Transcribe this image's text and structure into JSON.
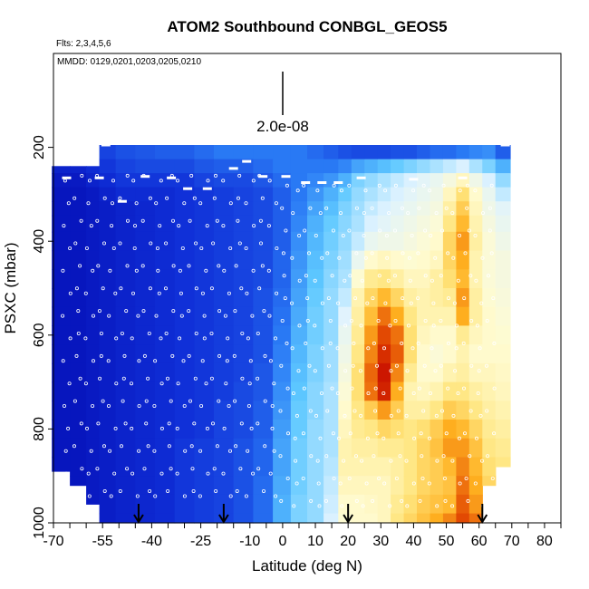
{
  "chart_data": {
    "type": "heatmap",
    "title": "ATOM2 Southbound CONBGL_GEOS5",
    "flights_note": "Flts: 2,3,4,5,6",
    "dates_note": "MMDD: 0129,0201,0203,0205,0210",
    "scale_label": "2.0e-08",
    "xlabel": "Latitude (deg N)",
    "ylabel": "PSXC (mbar)",
    "xlim": [
      -70,
      85
    ],
    "ylim": [
      1000,
      0
    ],
    "x_ticks": [
      -70,
      -55,
      -40,
      -25,
      -10,
      0,
      10,
      20,
      30,
      40,
      50,
      60,
      70,
      80
    ],
    "y_ticks": [
      200,
      400,
      600,
      800,
      1000
    ],
    "grid": false,
    "colormap": [
      "#0000a8",
      "#1030d8",
      "#2a7af5",
      "#5ec8ff",
      "#dff3ff",
      "#fffbd0",
      "#ffe680",
      "#ffb020",
      "#e04000",
      "#c00000"
    ],
    "pressure_levels": [
      210,
      240,
      270,
      300,
      330,
      360,
      400,
      440,
      480,
      520,
      560,
      600,
      640,
      680,
      720,
      760,
      800,
      840,
      880,
      920,
      960,
      1000
    ],
    "columns": [
      {
        "lat": -68,
        "top": 240,
        "bottom": 890,
        "values": [
          0.1,
          0.08,
          0.06,
          0.05,
          0.05,
          0.05,
          0.05,
          0.05,
          0.05,
          0.05,
          0.05,
          0.05,
          0.05,
          0.05,
          0.05,
          0.05,
          0.05,
          0.05,
          0.05,
          0.05,
          0.05,
          0.05
        ]
      },
      {
        "lat": -62,
        "top": 240,
        "bottom": 920,
        "values": [
          0.1,
          0.08,
          0.06,
          0.05,
          0.05,
          0.05,
          0.05,
          0.05,
          0.05,
          0.05,
          0.05,
          0.05,
          0.05,
          0.05,
          0.05,
          0.05,
          0.05,
          0.05,
          0.05,
          0.05,
          0.05,
          0.05
        ]
      },
      {
        "lat": -58,
        "top": 240,
        "bottom": 960,
        "values": [
          0.12,
          0.1,
          0.08,
          0.06,
          0.06,
          0.06,
          0.06,
          0.06,
          0.06,
          0.06,
          0.06,
          0.06,
          0.06,
          0.06,
          0.06,
          0.06,
          0.06,
          0.06,
          0.06,
          0.06,
          0.06,
          0.06
        ]
      },
      {
        "lat": -54,
        "top": 195,
        "bottom": 1000,
        "values": [
          0.14,
          0.12,
          0.1,
          0.08,
          0.07,
          0.07,
          0.07,
          0.07,
          0.07,
          0.07,
          0.07,
          0.07,
          0.07,
          0.07,
          0.07,
          0.07,
          0.07,
          0.07,
          0.07,
          0.07,
          0.07,
          0.07
        ]
      },
      {
        "lat": -48,
        "top": 195,
        "bottom": 1000,
        "values": [
          0.16,
          0.14,
          0.12,
          0.1,
          0.08,
          0.08,
          0.08,
          0.08,
          0.08,
          0.08,
          0.08,
          0.08,
          0.08,
          0.08,
          0.08,
          0.08,
          0.08,
          0.08,
          0.08,
          0.08,
          0.08,
          0.08
        ]
      },
      {
        "lat": -42,
        "top": 195,
        "bottom": 1000,
        "values": [
          0.17,
          0.15,
          0.12,
          0.1,
          0.09,
          0.09,
          0.09,
          0.09,
          0.09,
          0.09,
          0.09,
          0.09,
          0.09,
          0.09,
          0.09,
          0.09,
          0.09,
          0.09,
          0.09,
          0.09,
          0.09,
          0.09
        ]
      },
      {
        "lat": -36,
        "top": 195,
        "bottom": 1000,
        "values": [
          0.18,
          0.15,
          0.12,
          0.1,
          0.1,
          0.1,
          0.1,
          0.1,
          0.1,
          0.1,
          0.1,
          0.1,
          0.1,
          0.1,
          0.1,
          0.1,
          0.1,
          0.1,
          0.1,
          0.1,
          0.1,
          0.1
        ]
      },
      {
        "lat": -30,
        "top": 195,
        "bottom": 1000,
        "values": [
          0.18,
          0.15,
          0.12,
          0.11,
          0.11,
          0.11,
          0.11,
          0.11,
          0.11,
          0.11,
          0.11,
          0.11,
          0.11,
          0.11,
          0.11,
          0.11,
          0.11,
          0.12,
          0.12,
          0.12,
          0.12,
          0.12
        ]
      },
      {
        "lat": -24,
        "top": 195,
        "bottom": 1000,
        "values": [
          0.2,
          0.17,
          0.14,
          0.12,
          0.12,
          0.12,
          0.12,
          0.12,
          0.12,
          0.12,
          0.12,
          0.12,
          0.12,
          0.12,
          0.12,
          0.12,
          0.12,
          0.13,
          0.13,
          0.13,
          0.13,
          0.13
        ]
      },
      {
        "lat": -18,
        "top": 195,
        "bottom": 1000,
        "values": [
          0.22,
          0.18,
          0.15,
          0.13,
          0.13,
          0.13,
          0.13,
          0.13,
          0.13,
          0.13,
          0.13,
          0.13,
          0.13,
          0.13,
          0.13,
          0.14,
          0.14,
          0.14,
          0.14,
          0.14,
          0.14,
          0.14
        ]
      },
      {
        "lat": -12,
        "top": 195,
        "bottom": 1000,
        "values": [
          0.22,
          0.18,
          0.15,
          0.14,
          0.14,
          0.14,
          0.14,
          0.14,
          0.14,
          0.14,
          0.14,
          0.14,
          0.14,
          0.14,
          0.15,
          0.15,
          0.15,
          0.16,
          0.16,
          0.16,
          0.16,
          0.16
        ]
      },
      {
        "lat": -6,
        "top": 195,
        "bottom": 1000,
        "values": [
          0.22,
          0.2,
          0.17,
          0.15,
          0.15,
          0.15,
          0.15,
          0.15,
          0.15,
          0.16,
          0.16,
          0.16,
          0.16,
          0.17,
          0.17,
          0.18,
          0.18,
          0.19,
          0.19,
          0.2,
          0.2,
          0.2
        ]
      },
      {
        "lat": 0,
        "top": 195,
        "bottom": 1000,
        "values": [
          0.22,
          0.22,
          0.2,
          0.18,
          0.18,
          0.18,
          0.18,
          0.19,
          0.19,
          0.2,
          0.21,
          0.22,
          0.23,
          0.24,
          0.25,
          0.26,
          0.27,
          0.28,
          0.28,
          0.29,
          0.3,
          0.3
        ]
      },
      {
        "lat": 5,
        "top": 195,
        "bottom": 1000,
        "values": [
          0.22,
          0.22,
          0.22,
          0.22,
          0.23,
          0.24,
          0.25,
          0.26,
          0.27,
          0.28,
          0.29,
          0.3,
          0.31,
          0.32,
          0.33,
          0.34,
          0.34,
          0.35,
          0.35,
          0.35,
          0.36,
          0.36
        ]
      },
      {
        "lat": 10,
        "top": 195,
        "bottom": 1000,
        "values": [
          0.2,
          0.22,
          0.24,
          0.26,
          0.28,
          0.3,
          0.31,
          0.32,
          0.33,
          0.34,
          0.35,
          0.35,
          0.36,
          0.36,
          0.37,
          0.37,
          0.38,
          0.38,
          0.38,
          0.38,
          0.38,
          0.38
        ]
      },
      {
        "lat": 15,
        "top": 195,
        "bottom": 1000,
        "values": [
          0.18,
          0.22,
          0.26,
          0.3,
          0.32,
          0.34,
          0.35,
          0.36,
          0.37,
          0.38,
          0.38,
          0.38,
          0.39,
          0.39,
          0.4,
          0.4,
          0.4,
          0.4,
          0.41,
          0.42,
          0.43,
          0.44
        ]
      },
      {
        "lat": 19,
        "top": 195,
        "bottom": 1000,
        "values": [
          0.16,
          0.24,
          0.3,
          0.34,
          0.36,
          0.37,
          0.38,
          0.39,
          0.4,
          0.42,
          0.45,
          0.48,
          0.5,
          0.52,
          0.54,
          0.56,
          0.58,
          0.6,
          0.6,
          0.58,
          0.56,
          0.55
        ]
      },
      {
        "lat": 23,
        "top": 195,
        "bottom": 1000,
        "values": [
          0.15,
          0.28,
          0.36,
          0.38,
          0.39,
          0.4,
          0.42,
          0.48,
          0.55,
          0.6,
          0.62,
          0.64,
          0.66,
          0.68,
          0.68,
          0.66,
          0.64,
          0.62,
          0.6,
          0.58,
          0.56,
          0.56
        ]
      },
      {
        "lat": 27,
        "top": 195,
        "bottom": 1000,
        "values": [
          0.15,
          0.3,
          0.38,
          0.4,
          0.42,
          0.44,
          0.48,
          0.56,
          0.64,
          0.7,
          0.75,
          0.8,
          0.82,
          0.85,
          0.84,
          0.72,
          0.66,
          0.62,
          0.6,
          0.58,
          0.57,
          0.56
        ]
      },
      {
        "lat": 31,
        "top": 195,
        "bottom": 1000,
        "values": [
          0.15,
          0.32,
          0.4,
          0.42,
          0.44,
          0.46,
          0.5,
          0.58,
          0.66,
          0.76,
          0.84,
          0.88,
          0.92,
          0.96,
          0.94,
          0.8,
          0.7,
          0.64,
          0.6,
          0.58,
          0.58,
          0.58
        ]
      },
      {
        "lat": 35,
        "top": 195,
        "bottom": 1000,
        "values": [
          0.16,
          0.34,
          0.42,
          0.44,
          0.46,
          0.48,
          0.5,
          0.56,
          0.62,
          0.7,
          0.78,
          0.84,
          0.86,
          0.82,
          0.78,
          0.72,
          0.68,
          0.64,
          0.62,
          0.62,
          0.64,
          0.66
        ]
      },
      {
        "lat": 39,
        "top": 195,
        "bottom": 1000,
        "values": [
          0.16,
          0.36,
          0.44,
          0.46,
          0.48,
          0.5,
          0.52,
          0.55,
          0.58,
          0.62,
          0.66,
          0.68,
          0.68,
          0.64,
          0.6,
          0.62,
          0.66,
          0.66,
          0.66,
          0.66,
          0.68,
          0.7
        ]
      },
      {
        "lat": 43,
        "top": 195,
        "bottom": 1000,
        "values": [
          0.18,
          0.38,
          0.46,
          0.48,
          0.5,
          0.52,
          0.54,
          0.56,
          0.58,
          0.6,
          0.6,
          0.58,
          0.56,
          0.56,
          0.58,
          0.62,
          0.68,
          0.7,
          0.7,
          0.7,
          0.72,
          0.74
        ]
      },
      {
        "lat": 47,
        "top": 195,
        "bottom": 1000,
        "values": [
          0.2,
          0.4,
          0.48,
          0.5,
          0.52,
          0.54,
          0.56,
          0.58,
          0.62,
          0.62,
          0.6,
          0.56,
          0.54,
          0.56,
          0.6,
          0.66,
          0.72,
          0.74,
          0.72,
          0.72,
          0.74,
          0.78
        ]
      },
      {
        "lat": 51,
        "top": 195,
        "bottom": 1000,
        "values": [
          0.2,
          0.42,
          0.52,
          0.58,
          0.62,
          0.66,
          0.7,
          0.7,
          0.68,
          0.64,
          0.6,
          0.56,
          0.56,
          0.6,
          0.66,
          0.72,
          0.78,
          0.8,
          0.76,
          0.74,
          0.76,
          0.82
        ]
      },
      {
        "lat": 55,
        "top": 195,
        "bottom": 1000,
        "values": [
          0.22,
          0.44,
          0.58,
          0.68,
          0.72,
          0.76,
          0.8,
          0.78,
          0.76,
          0.8,
          0.78,
          0.64,
          0.6,
          0.62,
          0.66,
          0.7,
          0.76,
          0.8,
          0.82,
          0.84,
          0.86,
          0.88
        ]
      },
      {
        "lat": 59,
        "top": 195,
        "bottom": 1000,
        "values": [
          0.24,
          0.4,
          0.5,
          0.56,
          0.58,
          0.6,
          0.62,
          0.6,
          0.6,
          0.62,
          0.62,
          0.58,
          0.56,
          0.58,
          0.62,
          0.66,
          0.7,
          0.74,
          0.76,
          0.78,
          0.8,
          0.84
        ]
      },
      {
        "lat": 63,
        "top": 195,
        "bottom": 920,
        "values": [
          0.25,
          0.36,
          0.44,
          0.48,
          0.5,
          0.52,
          0.54,
          0.54,
          0.54,
          0.55,
          0.56,
          0.56,
          0.56,
          0.58,
          0.6,
          0.62,
          0.64,
          0.66,
          0.68,
          0.7,
          0.72,
          0.74
        ]
      },
      {
        "lat": 67,
        "top": 195,
        "bottom": 880,
        "values": [
          0.18,
          0.3,
          0.38,
          0.42,
          0.46,
          0.48,
          0.5,
          0.52,
          0.52,
          0.53,
          0.54,
          0.55,
          0.56,
          0.57,
          0.58,
          0.6,
          0.62,
          0.64,
          0.66,
          0.68,
          0.7,
          0.72
        ]
      }
    ],
    "flight_tracks": [
      {
        "lat": -66,
        "p": 265
      },
      {
        "lat": -56,
        "p": 265
      },
      {
        "lat": -54,
        "p": 195
      },
      {
        "lat": -49,
        "p": 315
      },
      {
        "lat": -42,
        "p": 262
      },
      {
        "lat": -34,
        "p": 265
      },
      {
        "lat": -29,
        "p": 288
      },
      {
        "lat": -23,
        "p": 288
      },
      {
        "lat": -15,
        "p": 245
      },
      {
        "lat": -11,
        "p": 230
      },
      {
        "lat": -6,
        "p": 262
      },
      {
        "lat": 1,
        "p": 262
      },
      {
        "lat": 7,
        "p": 275
      },
      {
        "lat": 12,
        "p": 275
      },
      {
        "lat": 17,
        "p": 275
      },
      {
        "lat": 24,
        "p": 265
      },
      {
        "lat": 40,
        "p": 268
      },
      {
        "lat": 55,
        "p": 265
      },
      {
        "lat": 68,
        "p": 195
      }
    ],
    "arrow_latitudes": [
      -44,
      -18,
      20,
      61
    ]
  }
}
